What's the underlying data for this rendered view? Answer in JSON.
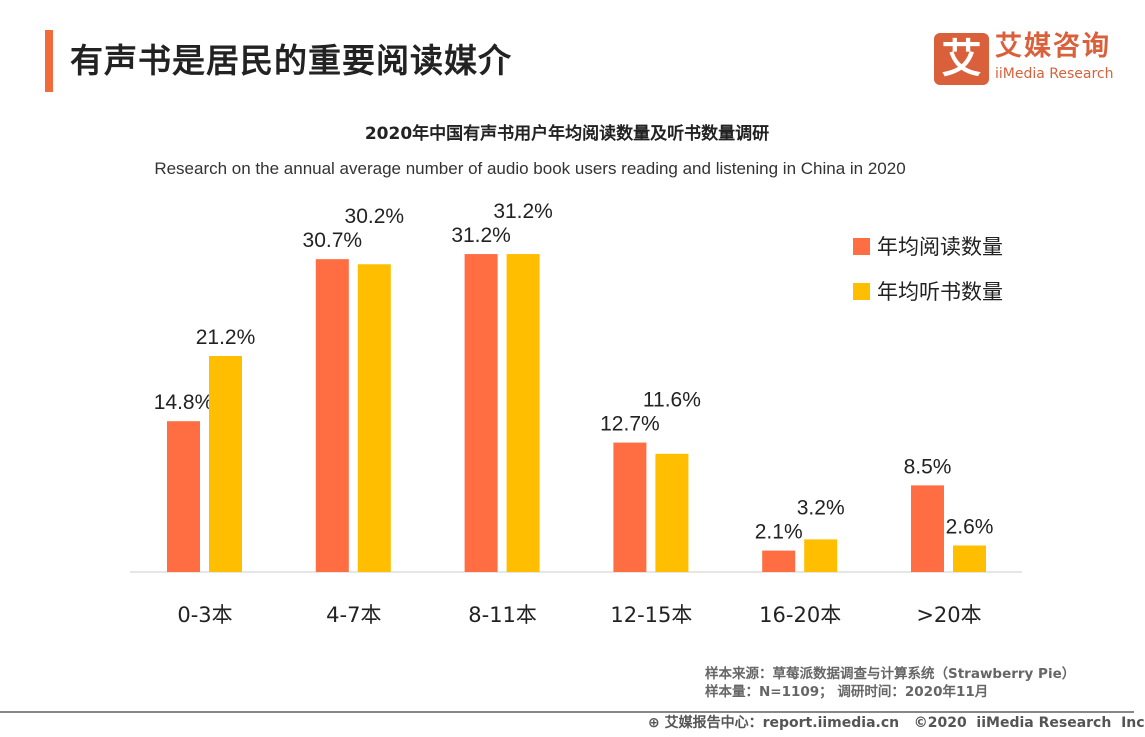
{
  "header": {
    "title": "有声书是居民的重要阅读媒介",
    "accent_color": "#f26b3a"
  },
  "logo": {
    "mark": "艾",
    "cn": "艾媒咨询",
    "en": "iiMedia Research",
    "color": "#d9603b"
  },
  "chart_data": {
    "type": "bar",
    "title": "2020年中国有声书用户年均阅读数量及听书数量调研",
    "subtitle": "Research on the annual average number of audio book users reading and listening in China in 2020",
    "categories": [
      "0-3本",
      "4-7本",
      "8-11本",
      "12-15本",
      "16-20本",
      ">20本"
    ],
    "series": [
      {
        "name": "年均阅读数量",
        "color": "#ff6d43",
        "values": [
          14.8,
          30.7,
          31.2,
          12.7,
          2.1,
          8.5
        ],
        "labels": [
          "14.8%",
          "30.7%",
          "31.2%",
          "12.7%",
          "2.1%",
          "8.5%"
        ]
      },
      {
        "name": "年均听书数量",
        "color": "#ffbe00",
        "values": [
          21.2,
          30.2,
          31.2,
          11.6,
          3.2,
          2.6
        ],
        "labels": [
          "21.2%",
          "30.2%",
          "31.2%",
          "11.6%",
          "3.2%",
          "2.6%"
        ]
      }
    ],
    "unit": "%",
    "ylim": [
      0,
      35
    ],
    "grid": false,
    "legend": "top-right"
  },
  "source": {
    "line1": "样本来源：草莓派数据调查与计算系统（Strawberry Pie）",
    "line2": "样本量：N=1109； 调研时间：2020年11月"
  },
  "footer": {
    "text": "艾媒报告中心：report.iimedia.cn   ©2020  iiMedia Research  Inc"
  }
}
